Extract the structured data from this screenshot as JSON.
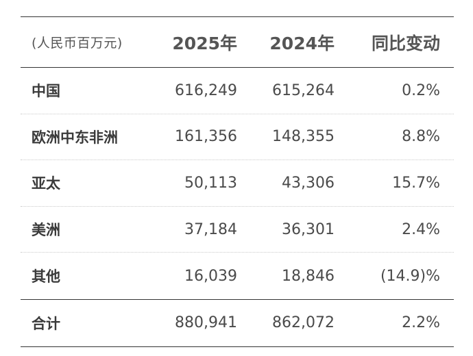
{
  "table": {
    "header": {
      "unit": "(人民币百万元)",
      "col_2025": "2025年",
      "col_2024": "2024年",
      "col_change": "同比变动"
    },
    "rows": [
      {
        "region": "中国",
        "y2025": "616,249",
        "y2024": "615,264",
        "change": "0.2%"
      },
      {
        "region": "欧洲中东非洲",
        "y2025": "161,356",
        "y2024": "148,355",
        "change": "8.8%"
      },
      {
        "region": "亚太",
        "y2025": "50,113",
        "y2024": "43,306",
        "change": "15.7%"
      },
      {
        "region": "美洲",
        "y2025": "37,184",
        "y2024": "36,301",
        "change": "2.4%"
      },
      {
        "region": "其他",
        "y2025": "16,039",
        "y2024": "18,846",
        "change": "(14.9)%"
      }
    ],
    "total": {
      "region": "合计",
      "y2025": "880,941",
      "y2024": "862,072",
      "change": "2.2%"
    }
  }
}
